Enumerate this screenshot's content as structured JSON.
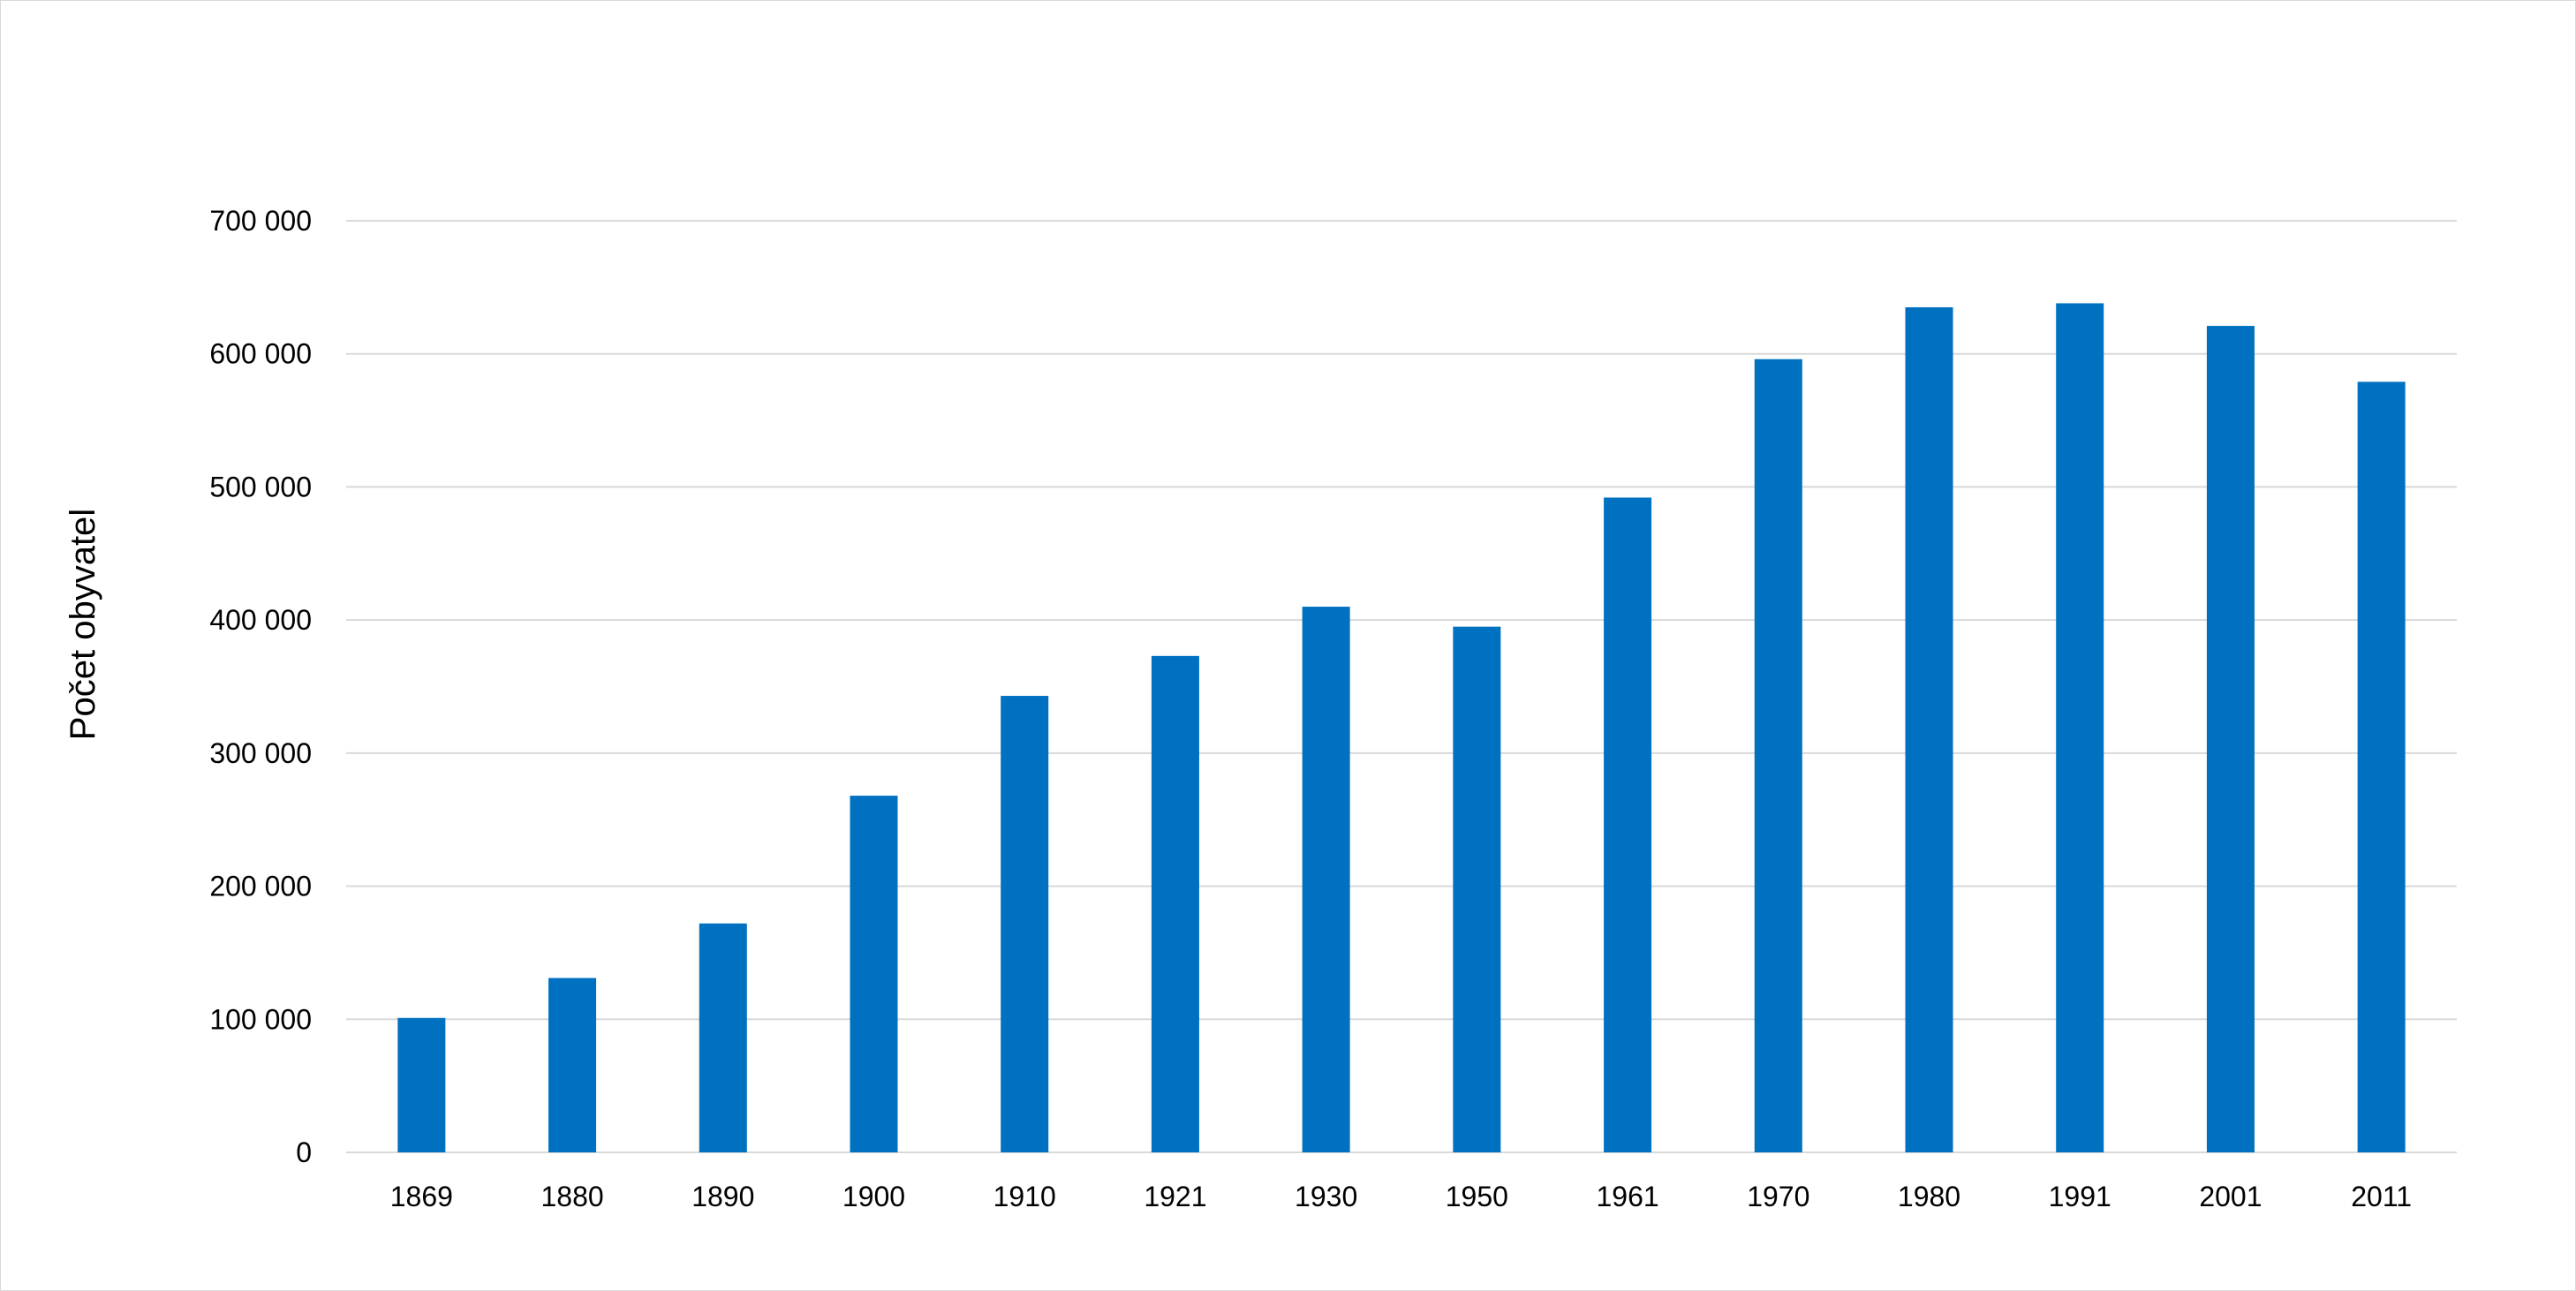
{
  "chart_data": {
    "type": "bar",
    "title": "",
    "xlabel": "",
    "ylabel": "Počet obyvatel",
    "categories": [
      "1869",
      "1880",
      "1890",
      "1900",
      "1910",
      "1921",
      "1930",
      "1950",
      "1961",
      "1970",
      "1980",
      "1991",
      "2001",
      "2011"
    ],
    "values": [
      101000,
      131000,
      172000,
      268000,
      343000,
      373000,
      410000,
      395000,
      492000,
      596000,
      635000,
      638000,
      621000,
      579000
    ],
    "ylim": [
      0,
      700000
    ],
    "yticks": [
      0,
      100000,
      200000,
      300000,
      400000,
      500000,
      600000,
      700000
    ],
    "ytick_labels": [
      "0",
      "100 000",
      "200 000",
      "300 000",
      "400 000",
      "500 000",
      "600 000",
      "700 000"
    ],
    "grid": true,
    "legend": "none",
    "bar_color": "#0070C0",
    "grid_color": "#d9d9d9"
  }
}
